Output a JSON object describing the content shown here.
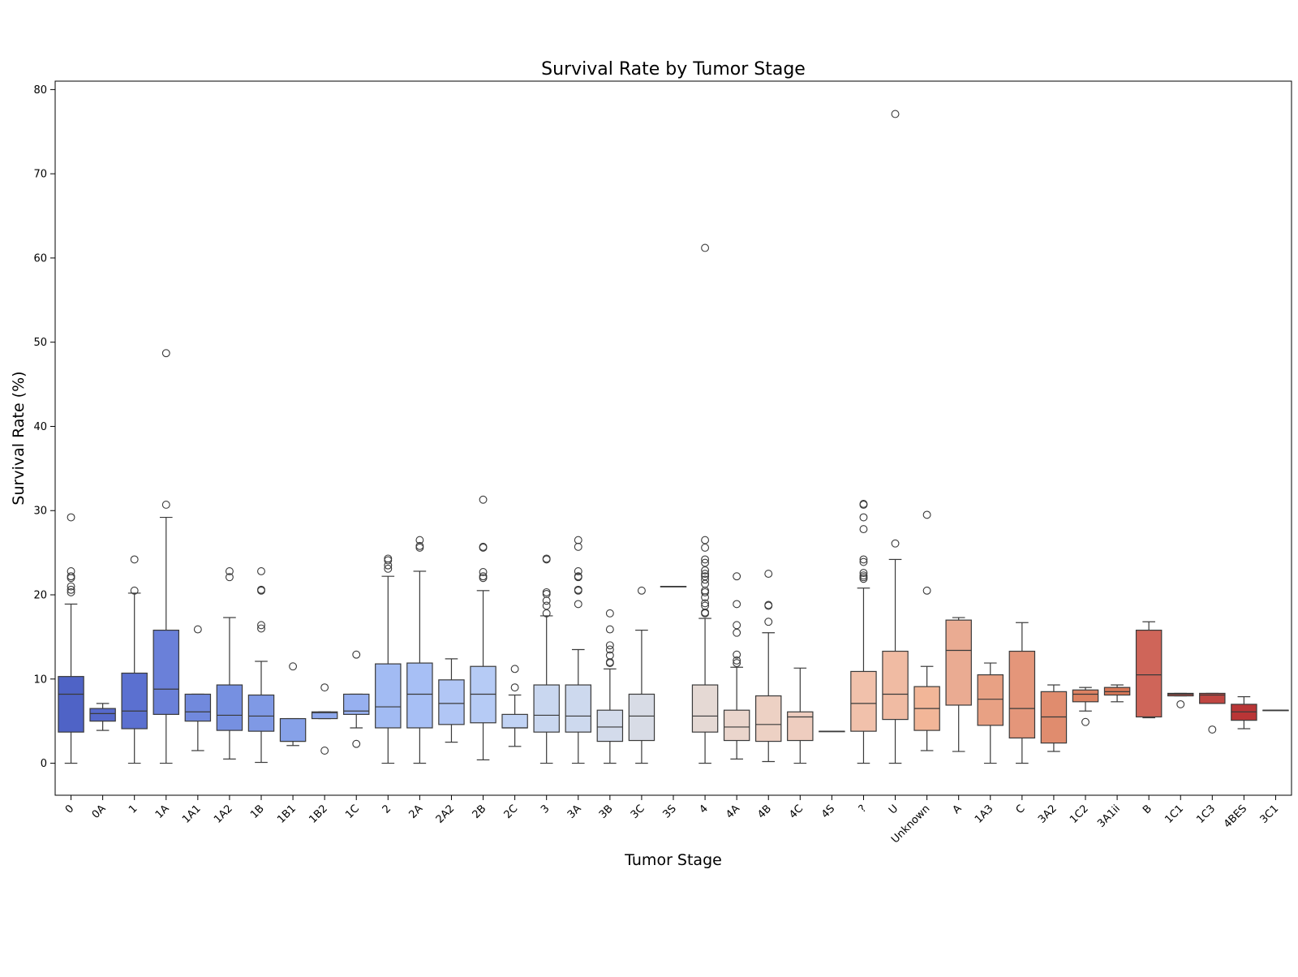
{
  "chart_data": {
    "type": "box",
    "title": "Survival Rate by Tumor Stage",
    "xlabel": "Tumor Stage",
    "ylabel": "Survival Rate (%)",
    "ylim": [
      -3.8,
      81
    ],
    "yticks": [
      0,
      10,
      20,
      30,
      40,
      50,
      60,
      70,
      80
    ],
    "grid": false,
    "palette": "coolwarm",
    "categories": [
      "0",
      "0A",
      "1",
      "1A",
      "1A1",
      "1A2",
      "1B",
      "1B1",
      "1B2",
      "1C",
      "2",
      "2A",
      "2A2",
      "2B",
      "2C",
      "3",
      "3A",
      "3B",
      "3C",
      "3S",
      "4",
      "4A",
      "4B",
      "4C",
      "4S",
      "?",
      "U",
      "Unknown",
      "A",
      "1A3",
      "C",
      "3A2",
      "1C2",
      "3A1ii",
      "B",
      "1C1",
      "1C3",
      "4BES",
      "3C1"
    ],
    "boxes": [
      {
        "stage": "0",
        "whislo": 0,
        "q1": 3.7,
        "med": 8.2,
        "q3": 10.3,
        "whishi": 18.9,
        "fliers": [
          20.3,
          20.6,
          21.0,
          22.0,
          22.2,
          22.8,
          29.2
        ],
        "color": "#4f63c6"
      },
      {
        "stage": "0A",
        "whislo": 3.9,
        "q1": 5.0,
        "med": 5.9,
        "q3": 6.5,
        "whishi": 7.1,
        "fliers": [],
        "color": "#5669cb"
      },
      {
        "stage": "1",
        "whislo": 0,
        "q1": 4.1,
        "med": 6.2,
        "q3": 10.7,
        "whishi": 20.2,
        "fliers": [
          20.5,
          24.2
        ],
        "color": "#5b70d0"
      },
      {
        "stage": "1A",
        "whislo": 0,
        "q1": 5.8,
        "med": 8.8,
        "q3": 15.8,
        "whishi": 29.2,
        "fliers": [
          30.7,
          48.7
        ],
        "color": "#6a80d9"
      },
      {
        "stage": "1A1",
        "whislo": 1.5,
        "q1": 5.0,
        "med": 6.1,
        "q3": 8.2,
        "whishi": 8.2,
        "fliers": [
          15.9
        ],
        "color": "#7189dd"
      },
      {
        "stage": "1A2",
        "whislo": 0.5,
        "q1": 3.9,
        "med": 5.7,
        "q3": 9.3,
        "whishi": 17.3,
        "fliers": [
          22.1,
          22.8
        ],
        "color": "#7690e1"
      },
      {
        "stage": "1B",
        "whislo": 0.1,
        "q1": 3.8,
        "med": 5.6,
        "q3": 8.1,
        "whishi": 12.1,
        "fliers": [
          16.0,
          16.4,
          20.5,
          20.6,
          22.8
        ],
        "color": "#7f99e5"
      },
      {
        "stage": "1B1",
        "whislo": 2.1,
        "q1": 2.6,
        "med": 2.6,
        "q3": 5.3,
        "whishi": 5.3,
        "fliers": [
          11.5
        ],
        "color": "#86a1e9"
      },
      {
        "stage": "1B2",
        "whislo": 5.3,
        "q1": 5.3,
        "med": 6.0,
        "q3": 6.1,
        "whishi": 6.1,
        "fliers": [
          1.5,
          9.0
        ],
        "color": "#8ea8ec"
      },
      {
        "stage": "1C",
        "whislo": 4.2,
        "q1": 5.8,
        "med": 6.2,
        "q3": 8.2,
        "whishi": 8.2,
        "fliers": [
          2.3,
          12.9
        ],
        "color": "#97b0f0"
      },
      {
        "stage": "2",
        "whislo": 0,
        "q1": 4.2,
        "med": 6.7,
        "q3": 11.8,
        "whishi": 22.2,
        "fliers": [
          23.1,
          23.5,
          24.1,
          24.3
        ],
        "color": "#a2bbf3"
      },
      {
        "stage": "2A",
        "whislo": 0,
        "q1": 4.2,
        "med": 8.2,
        "q3": 11.9,
        "whishi": 22.8,
        "fliers": [
          25.6,
          25.8,
          26.5
        ],
        "color": "#a7bff5"
      },
      {
        "stage": "2A2",
        "whislo": 2.5,
        "q1": 4.6,
        "med": 7.1,
        "q3": 9.9,
        "whishi": 12.4,
        "fliers": [],
        "color": "#b1c6f5"
      },
      {
        "stage": "2B",
        "whislo": 0.4,
        "q1": 4.8,
        "med": 8.2,
        "q3": 11.5,
        "whishi": 20.5,
        "fliers": [
          22.0,
          22.2,
          22.7,
          25.6,
          25.7,
          31.3
        ],
        "color": "#b6cbf5"
      },
      {
        "stage": "2C",
        "whislo": 2.0,
        "q1": 4.2,
        "med": 4.2,
        "q3": 5.8,
        "whishi": 8.1,
        "fliers": [
          9.0,
          11.2
        ],
        "color": "#c1d3f4"
      },
      {
        "stage": "3",
        "whislo": 0,
        "q1": 3.7,
        "med": 5.7,
        "q3": 9.3,
        "whishi": 17.5,
        "fliers": [
          17.8,
          18.7,
          19.3,
          20.1,
          20.3,
          24.2,
          24.3
        ],
        "color": "#c9d7f0"
      },
      {
        "stage": "3A",
        "whislo": 0,
        "q1": 3.7,
        "med": 5.6,
        "q3": 9.3,
        "whishi": 13.5,
        "fliers": [
          18.9,
          20.5,
          20.6,
          22.1,
          22.2,
          22.8,
          25.7,
          26.5
        ],
        "color": "#cdd9ee"
      },
      {
        "stage": "3B",
        "whislo": 0,
        "q1": 2.6,
        "med": 4.3,
        "q3": 6.3,
        "whishi": 11.2,
        "fliers": [
          11.9,
          12.0,
          12.8,
          13.5,
          14.0,
          15.9,
          17.8
        ],
        "color": "#d3dbeb"
      },
      {
        "stage": "3C",
        "whislo": 0,
        "q1": 2.7,
        "med": 5.6,
        "q3": 8.2,
        "whishi": 15.8,
        "fliers": [
          20.5
        ],
        "color": "#d8dce6"
      },
      {
        "stage": "3S",
        "whislo": 21.0,
        "q1": 21.0,
        "med": 21.0,
        "q3": 21.0,
        "whishi": 21.0,
        "fliers": [],
        "color": "#dddcdc"
      },
      {
        "stage": "4",
        "whislo": 0,
        "q1": 3.7,
        "med": 5.6,
        "q3": 9.3,
        "whishi": 17.2,
        "fliers": [
          17.8,
          17.9,
          18.7,
          19.0,
          19.7,
          20.3,
          20.5,
          21.3,
          21.8,
          22.2,
          22.5,
          22.9,
          23.8,
          24.2,
          25.6,
          26.5,
          61.2
        ],
        "color": "#e5d9d4"
      },
      {
        "stage": "4A",
        "whislo": 0.5,
        "q1": 2.7,
        "med": 4.3,
        "q3": 6.3,
        "whishi": 11.4,
        "fliers": [
          11.9,
          12.2,
          12.9,
          15.5,
          16.4,
          18.9,
          22.2
        ],
        "color": "#ead5cc"
      },
      {
        "stage": "4B",
        "whislo": 0.2,
        "q1": 2.6,
        "med": 4.6,
        "q3": 8.0,
        "whishi": 15.5,
        "fliers": [
          16.8,
          18.7,
          18.8,
          22.5
        ],
        "color": "#edd1c4"
      },
      {
        "stage": "4C",
        "whislo": 0,
        "q1": 2.7,
        "med": 5.5,
        "q3": 6.1,
        "whishi": 11.3,
        "fliers": [],
        "color": "#eecdbf"
      },
      {
        "stage": "4S",
        "whislo": 3.8,
        "q1": 3.8,
        "med": 3.8,
        "q3": 3.8,
        "whishi": 3.8,
        "fliers": [],
        "color": "#f0c8b6"
      },
      {
        "stage": "?",
        "whislo": 0,
        "q1": 3.8,
        "med": 7.1,
        "q3": 10.9,
        "whishi": 20.8,
        "fliers": [
          21.9,
          22.1,
          22.3,
          22.6,
          23.9,
          24.2,
          27.8,
          29.2,
          30.7,
          30.8
        ],
        "color": "#f1c1ab"
      },
      {
        "stage": "U",
        "whislo": 0,
        "q1": 5.2,
        "med": 8.2,
        "q3": 13.3,
        "whishi": 24.2,
        "fliers": [
          26.1,
          77.1
        ],
        "color": "#f0bba3"
      },
      {
        "stage": "Unknown",
        "whislo": 1.5,
        "q1": 3.9,
        "med": 6.5,
        "q3": 9.1,
        "whishi": 11.5,
        "fliers": [
          20.5,
          29.5
        ],
        "color": "#f2b698"
      },
      {
        "stage": "A",
        "whislo": 1.4,
        "q1": 6.9,
        "med": 13.4,
        "q3": 17.0,
        "whishi": 17.3,
        "fliers": [],
        "color": "#eaab92"
      },
      {
        "stage": "1A3",
        "whislo": 0,
        "q1": 4.5,
        "med": 7.6,
        "q3": 10.5,
        "whishi": 11.9,
        "fliers": [],
        "color": "#e8a184"
      },
      {
        "stage": "C",
        "whislo": 0,
        "q1": 3.0,
        "med": 6.5,
        "q3": 13.3,
        "whishi": 16.7,
        "fliers": [],
        "color": "#e4967a"
      },
      {
        "stage": "3A2",
        "whislo": 1.4,
        "q1": 2.4,
        "med": 5.5,
        "q3": 8.5,
        "whishi": 9.3,
        "fliers": [],
        "color": "#e08c6e"
      },
      {
        "stage": "1C2",
        "whislo": 6.2,
        "q1": 7.3,
        "med": 8.2,
        "q3": 8.7,
        "whishi": 9.0,
        "fliers": [
          4.9
        ],
        "color": "#dc8262"
      },
      {
        "stage": "3A1ii",
        "whislo": 7.3,
        "q1": 8.1,
        "med": 8.5,
        "q3": 9.0,
        "whishi": 9.3,
        "fliers": [],
        "color": "#d77757"
      },
      {
        "stage": "B",
        "whislo": 5.4,
        "q1": 5.5,
        "med": 10.5,
        "q3": 15.8,
        "whishi": 16.8,
        "fliers": [],
        "color": "#cf6559"
      },
      {
        "stage": "1C1",
        "whislo": 8.0,
        "q1": 8.0,
        "med": 8.2,
        "q3": 8.3,
        "whishi": 8.3,
        "fliers": [
          7.0
        ],
        "color": "#c9564b"
      },
      {
        "stage": "1C3",
        "whislo": 7.1,
        "q1": 7.1,
        "med": 8.1,
        "q3": 8.3,
        "whishi": 8.3,
        "fliers": [
          4.0
        ],
        "color": "#c04642"
      },
      {
        "stage": "4BES",
        "whislo": 4.1,
        "q1": 5.1,
        "med": 6.1,
        "q3": 7.0,
        "whishi": 7.9,
        "fliers": [],
        "color": "#b93536"
      },
      {
        "stage": "3C1",
        "whislo": 6.3,
        "q1": 6.3,
        "med": 6.3,
        "q3": 6.3,
        "whishi": 6.3,
        "fliers": [],
        "color": "#b4242e"
      }
    ]
  }
}
